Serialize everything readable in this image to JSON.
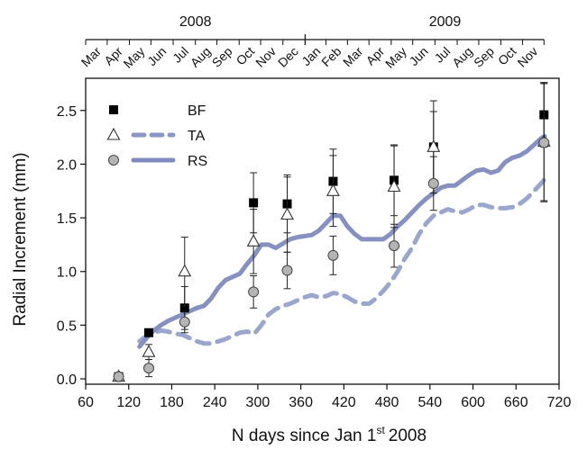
{
  "chart_data": {
    "type": "line",
    "xlabel": "N days since Jan 1",
    "xlabel_sup": "st",
    "xlabel_suffix": "2008",
    "ylabel": "Radial Increment (mm)",
    "xlim": [
      60,
      720
    ],
    "ylim": [
      -0.05,
      2.8
    ],
    "x_ticks": [
      "60",
      "120",
      "180",
      "240",
      "300",
      "360",
      "420",
      "480",
      "540",
      "600",
      "660",
      "720"
    ],
    "y_ticks": [
      "0.0",
      "0.5",
      "1.0",
      "1.5",
      "2.0",
      "2.5"
    ],
    "year_labels": [
      {
        "label": "2008",
        "center_day": 213
      },
      {
        "label": "2009",
        "center_day": 561
      }
    ],
    "month_labels": [
      {
        "label": "Mar",
        "day": 75
      },
      {
        "label": "Apr",
        "day": 105
      },
      {
        "label": "May",
        "day": 136
      },
      {
        "label": "Jun",
        "day": 166
      },
      {
        "label": "Jul",
        "day": 197
      },
      {
        "label": "Aug",
        "day": 228
      },
      {
        "label": "Sep",
        "day": 258
      },
      {
        "label": "Oct",
        "day": 289
      },
      {
        "label": "Nov",
        "day": 319
      },
      {
        "label": "Dec",
        "day": 350
      },
      {
        "label": "Jan",
        "day": 381
      },
      {
        "label": "Feb",
        "day": 410
      },
      {
        "label": "Mar",
        "day": 440
      },
      {
        "label": "Apr",
        "day": 470
      },
      {
        "label": "May",
        "day": 501
      },
      {
        "label": "Jun",
        "day": 531
      },
      {
        "label": "Jul",
        "day": 562
      },
      {
        "label": "Aug",
        "day": 593
      },
      {
        "label": "Sep",
        "day": 623
      },
      {
        "label": "Oct",
        "day": 654
      },
      {
        "label": "Nov",
        "day": 684
      }
    ],
    "colors": {
      "BF": "#000000",
      "TA": "#8a96c4",
      "RS": "#7f8bbe",
      "RS_marker": "#b4b4b4"
    },
    "legend": {
      "placement": "top-left",
      "entries": [
        {
          "name": "BF",
          "marker": "square"
        },
        {
          "name": "TA",
          "marker": "triangle",
          "line": "dashed"
        },
        {
          "name": "RS",
          "marker": "circle",
          "line": "solid"
        }
      ]
    },
    "points": [
      {
        "name": "BF",
        "marker": "square",
        "data": [
          {
            "x": 106,
            "y": 0.02,
            "err": 0.0
          },
          {
            "x": 148,
            "y": 0.43,
            "err": 0.02
          },
          {
            "x": 198,
            "y": 0.66,
            "err": 0.2
          },
          {
            "x": 294,
            "y": 1.64,
            "err": 0.28
          },
          {
            "x": 341,
            "y": 1.63,
            "err": 0.27
          },
          {
            "x": 405,
            "y": 1.84,
            "err": 0.3
          },
          {
            "x": 490,
            "y": 1.85,
            "err": 0.33
          },
          {
            "x": 545,
            "y": 2.16,
            "err": 0.43
          },
          {
            "x": 699,
            "y": 2.46,
            "err": 0.3
          }
        ]
      },
      {
        "name": "TA",
        "marker": "triangle",
        "data": [
          {
            "x": 106,
            "y": 0.02,
            "err": 0.0
          },
          {
            "x": 148,
            "y": 0.25,
            "err": 0.07
          },
          {
            "x": 198,
            "y": 1.0,
            "err": 0.32
          },
          {
            "x": 294,
            "y": 1.28,
            "err": 0.3
          },
          {
            "x": 341,
            "y": 1.53,
            "err": 0.35
          },
          {
            "x": 405,
            "y": 1.75,
            "err": 0.33
          },
          {
            "x": 490,
            "y": 1.79,
            "err": 0.38
          },
          {
            "x": 545,
            "y": 2.16,
            "err": 0.33
          },
          {
            "x": 699,
            "y": 2.21,
            "err": 0.55
          }
        ]
      },
      {
        "name": "RS",
        "marker": "circle",
        "data": [
          {
            "x": 106,
            "y": 0.02,
            "err": 0.0
          },
          {
            "x": 148,
            "y": 0.1,
            "err": 0.08
          },
          {
            "x": 198,
            "y": 0.53,
            "err": 0.1
          },
          {
            "x": 294,
            "y": 0.81,
            "err": 0.15
          },
          {
            "x": 341,
            "y": 1.01,
            "err": 0.17
          },
          {
            "x": 405,
            "y": 1.15,
            "err": 0.18
          },
          {
            "x": 490,
            "y": 1.24,
            "err": 0.2
          },
          {
            "x": 545,
            "y": 1.82,
            "err": 0.25
          },
          {
            "x": 699,
            "y": 2.2,
            "err": 0.55
          }
        ]
      }
    ],
    "lines": [
      {
        "name": "TA",
        "style": "dashed",
        "data": [
          [
            135,
            0.35
          ],
          [
            145,
            0.4
          ],
          [
            155,
            0.43
          ],
          [
            165,
            0.45
          ],
          [
            175,
            0.44
          ],
          [
            185,
            0.42
          ],
          [
            195,
            0.41
          ],
          [
            205,
            0.38
          ],
          [
            215,
            0.35
          ],
          [
            225,
            0.33
          ],
          [
            235,
            0.33
          ],
          [
            245,
            0.35
          ],
          [
            255,
            0.37
          ],
          [
            265,
            0.4
          ],
          [
            275,
            0.43
          ],
          [
            285,
            0.44
          ],
          [
            295,
            0.42
          ],
          [
            305,
            0.5
          ],
          [
            315,
            0.6
          ],
          [
            325,
            0.65
          ],
          [
            335,
            0.68
          ],
          [
            345,
            0.7
          ],
          [
            355,
            0.73
          ],
          [
            365,
            0.76
          ],
          [
            375,
            0.78
          ],
          [
            385,
            0.76
          ],
          [
            395,
            0.77
          ],
          [
            405,
            0.8
          ],
          [
            415,
            0.79
          ],
          [
            425,
            0.76
          ],
          [
            435,
            0.72
          ],
          [
            445,
            0.7
          ],
          [
            455,
            0.7
          ],
          [
            465,
            0.75
          ],
          [
            475,
            0.82
          ],
          [
            485,
            0.9
          ],
          [
            495,
            1.0
          ],
          [
            505,
            1.12
          ],
          [
            515,
            1.22
          ],
          [
            525,
            1.35
          ],
          [
            535,
            1.45
          ],
          [
            545,
            1.52
          ],
          [
            555,
            1.55
          ],
          [
            565,
            1.58
          ],
          [
            575,
            1.56
          ],
          [
            585,
            1.55
          ],
          [
            595,
            1.58
          ],
          [
            605,
            1.62
          ],
          [
            615,
            1.62
          ],
          [
            625,
            1.6
          ],
          [
            635,
            1.59
          ],
          [
            645,
            1.59
          ],
          [
            655,
            1.6
          ],
          [
            665,
            1.63
          ],
          [
            675,
            1.68
          ],
          [
            685,
            1.75
          ],
          [
            695,
            1.82
          ],
          [
            700,
            1.86
          ]
        ]
      },
      {
        "name": "RS",
        "style": "solid",
        "data": [
          [
            135,
            0.3
          ],
          [
            145,
            0.38
          ],
          [
            155,
            0.45
          ],
          [
            165,
            0.5
          ],
          [
            175,
            0.54
          ],
          [
            185,
            0.57
          ],
          [
            195,
            0.6
          ],
          [
            205,
            0.63
          ],
          [
            215,
            0.66
          ],
          [
            225,
            0.68
          ],
          [
            235,
            0.75
          ],
          [
            245,
            0.85
          ],
          [
            255,
            0.92
          ],
          [
            265,
            0.95
          ],
          [
            275,
            0.98
          ],
          [
            285,
            1.07
          ],
          [
            295,
            1.15
          ],
          [
            305,
            1.25
          ],
          [
            315,
            1.25
          ],
          [
            325,
            1.22
          ],
          [
            335,
            1.26
          ],
          [
            345,
            1.3
          ],
          [
            355,
            1.32
          ],
          [
            365,
            1.33
          ],
          [
            375,
            1.34
          ],
          [
            385,
            1.38
          ],
          [
            395,
            1.45
          ],
          [
            405,
            1.52
          ],
          [
            415,
            1.52
          ],
          [
            425,
            1.42
          ],
          [
            435,
            1.35
          ],
          [
            445,
            1.3
          ],
          [
            455,
            1.3
          ],
          [
            465,
            1.3
          ],
          [
            475,
            1.3
          ],
          [
            485,
            1.35
          ],
          [
            495,
            1.42
          ],
          [
            505,
            1.48
          ],
          [
            515,
            1.55
          ],
          [
            525,
            1.62
          ],
          [
            535,
            1.68
          ],
          [
            545,
            1.73
          ],
          [
            555,
            1.78
          ],
          [
            565,
            1.8
          ],
          [
            575,
            1.8
          ],
          [
            585,
            1.85
          ],
          [
            595,
            1.9
          ],
          [
            605,
            1.94
          ],
          [
            615,
            1.95
          ],
          [
            625,
            1.92
          ],
          [
            635,
            1.94
          ],
          [
            645,
            2.02
          ],
          [
            655,
            2.06
          ],
          [
            665,
            2.08
          ],
          [
            675,
            2.12
          ],
          [
            685,
            2.18
          ],
          [
            695,
            2.24
          ],
          [
            700,
            2.26
          ]
        ]
      }
    ]
  }
}
